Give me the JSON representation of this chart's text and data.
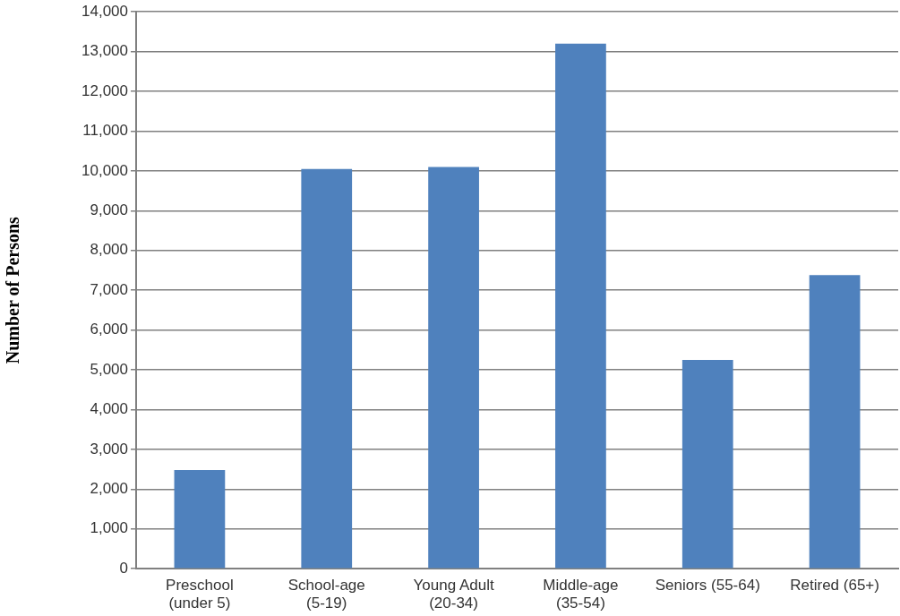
{
  "chart_data": {
    "type": "bar",
    "ylabel": "Number of Persons",
    "categories": [
      "Preschool (under 5)",
      "School-age (5-19)",
      "Young Adult (20-34)",
      "Middle-age (35-54)",
      "Seniors (55-64)",
      "Retired (65+)"
    ],
    "values": [
      2480,
      10050,
      10100,
      13200,
      5250,
      7380
    ],
    "color": "#4f81bd",
    "ylim": [
      0,
      14000
    ],
    "yticks": [
      0,
      {
        "value": 1000,
        "label": "1,000"
      },
      {
        "value": 2000,
        "label": "2,000"
      },
      {
        "value": 3000,
        "label": "3,000"
      },
      {
        "value": 4000,
        "label": "4,000"
      },
      {
        "value": 5000,
        "label": "5,000"
      },
      {
        "value": 6000,
        "label": "6,000"
      },
      {
        "value": 7000,
        "label": "7,000"
      },
      {
        "value": 8000,
        "label": "8,000"
      },
      {
        "value": 9000,
        "label": "9,000"
      },
      {
        "value": 10000,
        "label": "10,000"
      },
      {
        "value": 11000,
        "label": "11,000"
      },
      {
        "value": 12000,
        "label": "12,000"
      },
      {
        "value": 13000,
        "label": "13,000"
      },
      {
        "value": 14000,
        "label": "14,000"
      }
    ],
    "grid": "y",
    "legend": false
  }
}
